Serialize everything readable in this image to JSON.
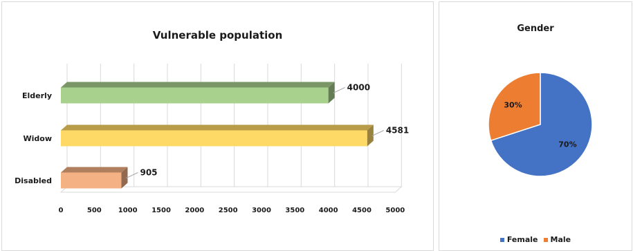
{
  "chart_data": [
    {
      "type": "bar",
      "orientation": "horizontal",
      "style": "3d",
      "title": "Vulnerable population",
      "categories": [
        "Elderly",
        "Widow",
        "Disabled"
      ],
      "values": [
        4000,
        4581,
        905
      ],
      "colors": [
        "#a9d18e",
        "#ffd966",
        "#f4b183"
      ],
      "xlim": [
        0,
        5000
      ],
      "x_ticks": [
        0,
        500,
        1000,
        1500,
        2000,
        2500,
        3000,
        3500,
        4000,
        4500,
        5000
      ],
      "grid": true,
      "data_labels": true
    },
    {
      "type": "pie",
      "title": "Gender",
      "labels": [
        "Female",
        "Male"
      ],
      "values": [
        70,
        30
      ],
      "value_labels": [
        "70%",
        "30%"
      ],
      "colors": [
        "#4472c4",
        "#ed7d31"
      ],
      "legend_position": "bottom"
    }
  ]
}
